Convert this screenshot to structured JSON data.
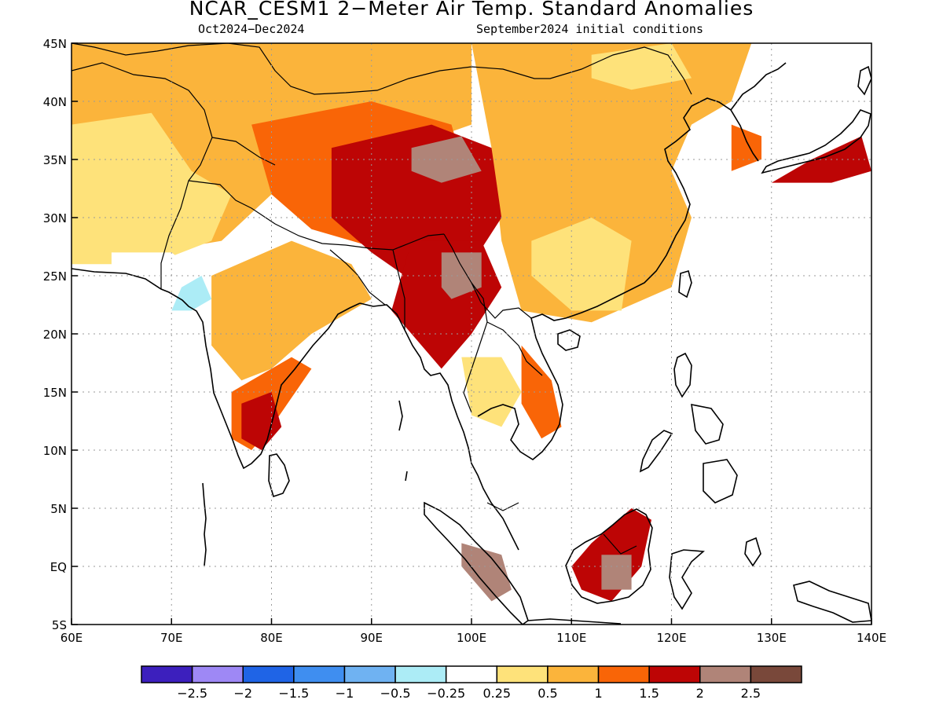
{
  "title": "NCAR_CESM1 2−Meter Air Temp. Standard Anomalies",
  "subtitle_left": "Oct2024−Dec2024",
  "subtitle_right": "September2024 initial conditions",
  "map": {
    "lon_range": [
      60,
      140
    ],
    "lat_range": [
      -5,
      45
    ],
    "x_ticks": [
      {
        "value": 60,
        "label": "60E"
      },
      {
        "value": 70,
        "label": "70E"
      },
      {
        "value": 80,
        "label": "80E"
      },
      {
        "value": 90,
        "label": "90E"
      },
      {
        "value": 100,
        "label": "100E"
      },
      {
        "value": 110,
        "label": "110E"
      },
      {
        "value": 120,
        "label": "120E"
      },
      {
        "value": 130,
        "label": "130E"
      },
      {
        "value": 140,
        "label": "140E"
      }
    ],
    "y_ticks": [
      {
        "value": 45,
        "label": "45N"
      },
      {
        "value": 40,
        "label": "40N"
      },
      {
        "value": 35,
        "label": "35N"
      },
      {
        "value": 30,
        "label": "30N"
      },
      {
        "value": 25,
        "label": "25N"
      },
      {
        "value": 20,
        "label": "20N"
      },
      {
        "value": 15,
        "label": "15N"
      },
      {
        "value": 10,
        "label": "10N"
      },
      {
        "value": 5,
        "label": "5N"
      },
      {
        "value": 0,
        "label": "EQ"
      },
      {
        "value": -5,
        "label": "5S"
      }
    ],
    "grid": "dotted",
    "anomaly_regions": [
      {
        "name": "northwest-orange",
        "level": 1.0,
        "points": [
          [
            60,
            45
          ],
          [
            100,
            45
          ],
          [
            100,
            38
          ],
          [
            90,
            35
          ],
          [
            80,
            32
          ],
          [
            75,
            28
          ],
          [
            68,
            27
          ],
          [
            60,
            26
          ]
        ]
      },
      {
        "name": "northeast-orange",
        "level": 1.0,
        "points": [
          [
            100,
            45
          ],
          [
            128,
            45
          ],
          [
            126,
            40
          ],
          [
            122,
            38
          ],
          [
            120,
            34
          ],
          [
            122,
            30
          ],
          [
            120,
            24
          ],
          [
            112,
            21
          ],
          [
            105,
            22
          ],
          [
            103,
            28
          ],
          [
            102,
            36
          ]
        ]
      },
      {
        "name": "west-light",
        "level": 0.5,
        "points": [
          [
            60,
            38
          ],
          [
            68,
            39
          ],
          [
            72,
            34
          ],
          [
            76,
            32
          ],
          [
            74,
            28
          ],
          [
            68,
            26
          ],
          [
            60,
            26
          ]
        ]
      },
      {
        "name": "mongolia-light",
        "level": 0.5,
        "points": [
          [
            112,
            44
          ],
          [
            120,
            45
          ],
          [
            122,
            42
          ],
          [
            116,
            41
          ],
          [
            112,
            42
          ]
        ]
      },
      {
        "name": "southchina-light",
        "level": 0.5,
        "points": [
          [
            106,
            28
          ],
          [
            112,
            30
          ],
          [
            116,
            28
          ],
          [
            115,
            22
          ],
          [
            110,
            22
          ],
          [
            106,
            25
          ]
        ]
      },
      {
        "name": "pakistan-white",
        "level": 0.0,
        "points": [
          [
            64,
            27
          ],
          [
            70,
            27
          ],
          [
            73,
            25
          ],
          [
            67,
            24
          ],
          [
            64,
            25
          ]
        ]
      },
      {
        "name": "gujarat-blue",
        "level": -0.25,
        "points": [
          [
            71,
            24
          ],
          [
            73,
            25
          ],
          [
            74,
            23
          ],
          [
            72,
            22
          ],
          [
            70,
            22
          ]
        ]
      },
      {
        "name": "india-orange",
        "level": 1.0,
        "points": [
          [
            74,
            25
          ],
          [
            82,
            28
          ],
          [
            88,
            26
          ],
          [
            90,
            23
          ],
          [
            84,
            20
          ],
          [
            80,
            17
          ],
          [
            77,
            16
          ],
          [
            74,
            19
          ]
        ]
      },
      {
        "name": "india-red-patch",
        "level": 1.5,
        "points": [
          [
            76,
            15
          ],
          [
            82,
            18
          ],
          [
            84,
            17
          ],
          [
            80,
            12
          ],
          [
            78,
            10
          ],
          [
            76,
            11
          ]
        ]
      },
      {
        "name": "india-dark-red",
        "level": 2.0,
        "points": [
          [
            77,
            14
          ],
          [
            80,
            15
          ],
          [
            81,
            12
          ],
          [
            79,
            10
          ],
          [
            77,
            11
          ]
        ]
      },
      {
        "name": "tibet-orange-red",
        "level": 1.5,
        "points": [
          [
            78,
            38
          ],
          [
            90,
            40
          ],
          [
            98,
            38
          ],
          [
            100,
            32
          ],
          [
            98,
            28
          ],
          [
            92,
            27
          ],
          [
            84,
            29
          ],
          [
            80,
            32
          ]
        ]
      },
      {
        "name": "tibet-dark-red",
        "level": 2.0,
        "points": [
          [
            86,
            36
          ],
          [
            96,
            38
          ],
          [
            102,
            36
          ],
          [
            103,
            30
          ],
          [
            100,
            26
          ],
          [
            95,
            24
          ],
          [
            90,
            27
          ],
          [
            86,
            30
          ]
        ]
      },
      {
        "name": "tibet-brown",
        "level": 2.5,
        "points": [
          [
            94,
            36
          ],
          [
            99,
            37
          ],
          [
            101,
            34
          ],
          [
            97,
            33
          ],
          [
            94,
            34
          ]
        ]
      },
      {
        "name": "indochina-dark-red",
        "level": 2.0,
        "points": [
          [
            94,
            28
          ],
          [
            101,
            28
          ],
          [
            103,
            24
          ],
          [
            100,
            20
          ],
          [
            97,
            17
          ],
          [
            95,
            19
          ],
          [
            92,
            22
          ]
        ]
      },
      {
        "name": "indochina-brown",
        "level": 2.5,
        "points": [
          [
            97,
            27
          ],
          [
            101,
            27
          ],
          [
            101,
            24
          ],
          [
            98,
            23
          ],
          [
            97,
            24
          ]
        ]
      },
      {
        "name": "thailand-light",
        "level": 0.5,
        "points": [
          [
            99,
            18
          ],
          [
            103,
            18
          ],
          [
            105,
            15
          ],
          [
            103,
            12
          ],
          [
            100,
            13
          ]
        ]
      },
      {
        "name": "vietnam-red",
        "level": 1.5,
        "points": [
          [
            105,
            19
          ],
          [
            108,
            16
          ],
          [
            109,
            12
          ],
          [
            107,
            11
          ],
          [
            105,
            14
          ]
        ]
      },
      {
        "name": "borneo-dark-red",
        "level": 2.0,
        "points": [
          [
            112,
            2
          ],
          [
            116,
            5
          ],
          [
            118,
            4
          ],
          [
            117,
            0
          ],
          [
            114,
            -3
          ],
          [
            111,
            -2
          ],
          [
            110,
            0
          ]
        ]
      },
      {
        "name": "borneo-brown",
        "level": 2.5,
        "points": [
          [
            113,
            1
          ],
          [
            116,
            1
          ],
          [
            116,
            -2
          ],
          [
            113,
            -2
          ]
        ]
      },
      {
        "name": "sumatra-brown",
        "level": 2.5,
        "points": [
          [
            99,
            2
          ],
          [
            103,
            1
          ],
          [
            104,
            -2
          ],
          [
            102,
            -3
          ],
          [
            99,
            0
          ]
        ]
      },
      {
        "name": "korea-red",
        "level": 1.5,
        "points": [
          [
            126,
            38
          ],
          [
            129,
            37
          ],
          [
            129,
            35
          ],
          [
            126,
            34
          ]
        ]
      },
      {
        "name": "japan-dark-red",
        "level": 2.0,
        "points": [
          [
            130,
            33
          ],
          [
            134,
            35
          ],
          [
            139,
            37
          ],
          [
            140,
            34
          ],
          [
            136,
            33
          ]
        ]
      }
    ]
  },
  "colorbar": {
    "colors": [
      "#3c1fbd",
      "#9e88f5",
      "#1f64e6",
      "#3f8ef0",
      "#6fb2f2",
      "#acecf6",
      "#ffffff",
      "#fee27a",
      "#fbb43b",
      "#f96507",
      "#bd0505",
      "#b08478",
      "#79483a"
    ],
    "labels": [
      "−2.5",
      "−2",
      "−1.5",
      "−1",
      "−0.5",
      "−0.25",
      "0.25",
      "0.5",
      "1",
      "1.5",
      "2",
      "2.5"
    ]
  }
}
